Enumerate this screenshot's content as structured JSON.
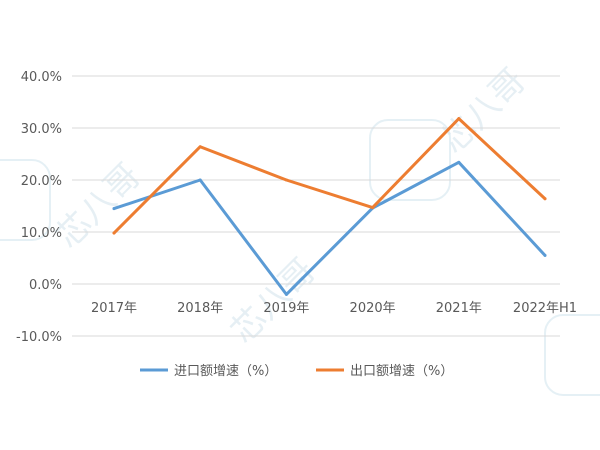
{
  "watermark_text": "芯八哥",
  "chart_data": {
    "type": "line",
    "categories": [
      "2017年",
      "2018年",
      "2019年",
      "2020年",
      "2021年",
      "2022年H1"
    ],
    "series": [
      {
        "name": "进口额增速（%）",
        "color": "#5b9bd5",
        "values": [
          14.5,
          20.0,
          -2.0,
          14.6,
          23.4,
          5.5
        ]
      },
      {
        "name": "出口额增速（%）",
        "color": "#ed7d31",
        "values": [
          9.8,
          26.4,
          20.0,
          14.7,
          31.8,
          16.4
        ]
      }
    ],
    "ylim": [
      -10,
      40
    ],
    "yticks": [
      "-10.0%",
      "0.0%",
      "10.0%",
      "20.0%",
      "30.0%",
      "40.0%"
    ],
    "ytick_values": [
      -10,
      0,
      10,
      20,
      30,
      40
    ],
    "grid": true,
    "legend": "bottom"
  }
}
